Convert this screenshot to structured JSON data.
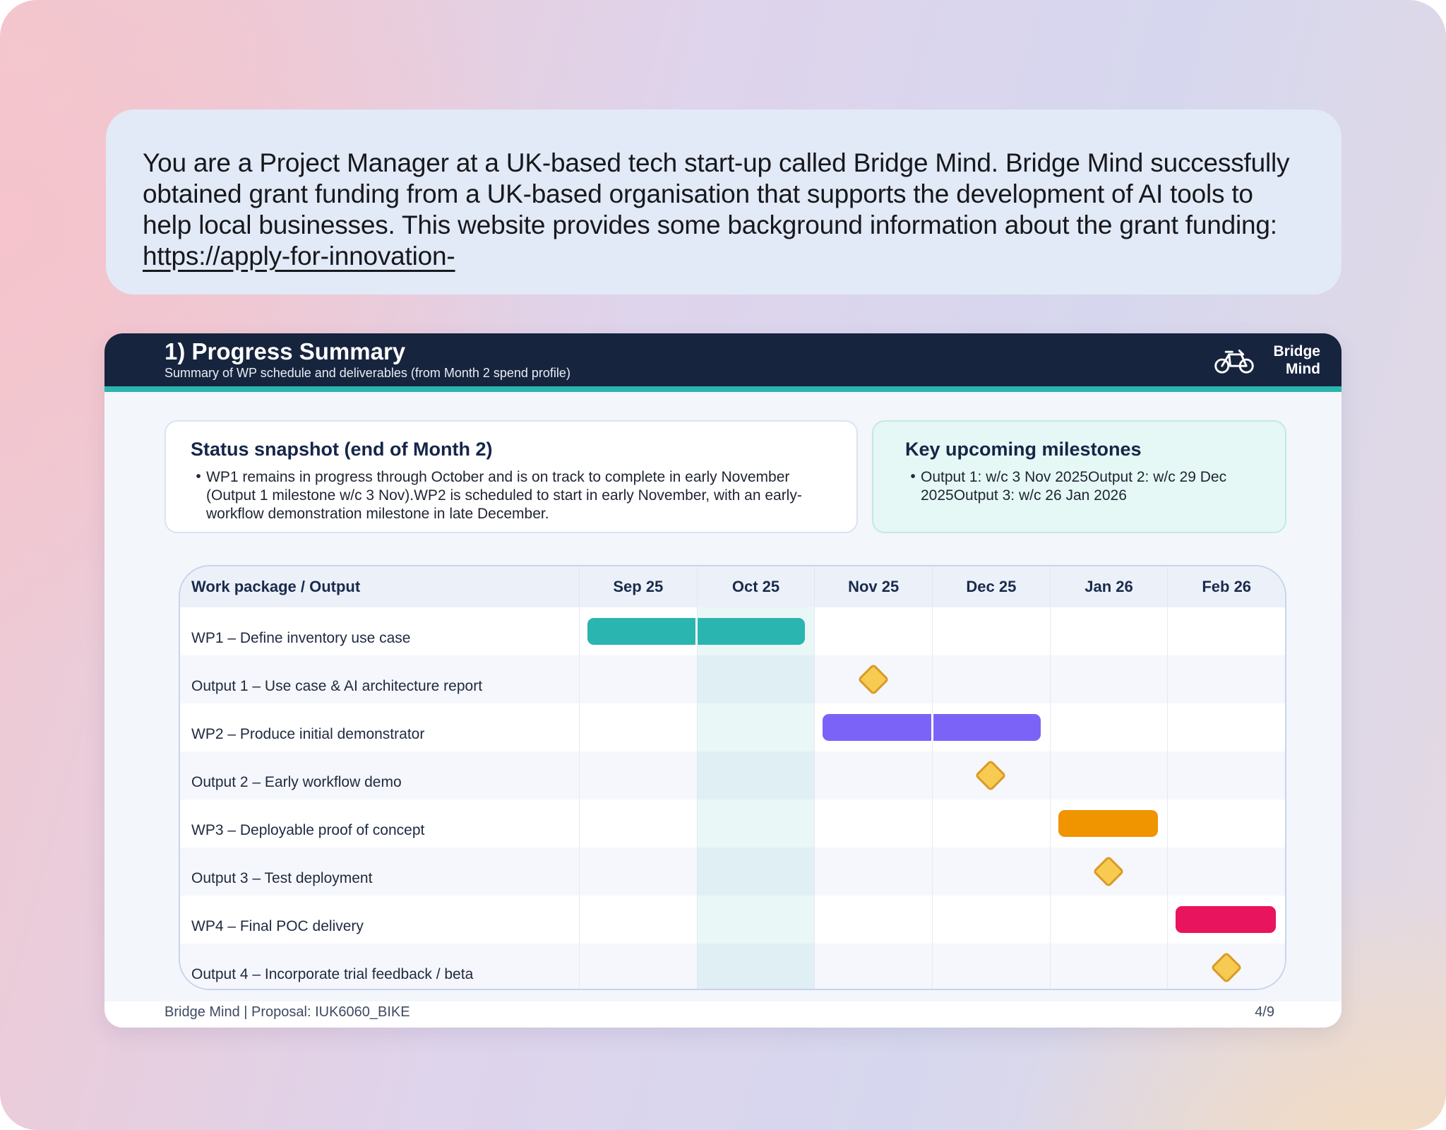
{
  "instruction_card": {
    "text_before_link": "You are a Project Manager at a UK-based tech start-up called Bridge Mind. Bridge Mind successfully obtained grant funding from a UK-based organisation that supports the development of AI tools to help local businesses. This website provides some background information about the grant funding:",
    "link_text": " https://apply-for-innovation-"
  },
  "slide": {
    "header": {
      "title": "1) Progress Summary",
      "subtitle": "Summary of WP schedule and deliverables (from Month 2 spend profile)",
      "brand_line1": "Bridge",
      "brand_line2": "Mind",
      "logo_icon": "bicycle-icon"
    },
    "status_box": {
      "title": "Status snapshot (end of Month 2)",
      "bullet_marker": "•",
      "bullets": [
        "WP1 remains in progress through October and is on track to complete in early November (Output 1 milestone w/c 3 Nov).WP2 is scheduled to start in early November, with an early-workflow demonstration milestone in late December."
      ]
    },
    "milestones_box": {
      "title": "Key upcoming milestones",
      "bullet_marker": "•",
      "bullets": [
        "Output 1: w/c 3 Nov 2025Output 2: w/c 29 Dec 2025Output 3: w/c 26 Jan 2026"
      ]
    },
    "footer": {
      "left": "Bridge Mind | Proposal: IUK6060_BIKE",
      "page": "4/9"
    }
  },
  "chart_data": {
    "type": "gantt",
    "table_header": "Work package / Output",
    "months": [
      "Sep 25",
      "Oct 25",
      "Nov 25",
      "Dec 25",
      "Jan 26",
      "Feb 26"
    ],
    "current_month_highlight": "Oct 25",
    "rows": [
      {
        "label": "WP1 – Define inventory use case",
        "kind": "bar",
        "start_month": "Sep 25",
        "span_months": 2,
        "color": "#2BB5B1"
      },
      {
        "label": "Output 1 – Use case & AI architecture report",
        "kind": "milestone",
        "month": "Nov 25"
      },
      {
        "label": "WP2 – Produce initial demonstrator",
        "kind": "bar",
        "start_month": "Nov 25",
        "span_months": 2,
        "color": "#7C63F8"
      },
      {
        "label": "Output 2 – Early workflow demo",
        "kind": "milestone",
        "month": "Dec 25"
      },
      {
        "label": "WP3 – Deployable proof of concept",
        "kind": "bar",
        "start_month": "Jan 26",
        "span_months": 1,
        "color": "#F09400"
      },
      {
        "label": "Output 3 – Test deployment",
        "kind": "milestone",
        "month": "Jan 26"
      },
      {
        "label": "WP4 – Final POC delivery",
        "kind": "bar",
        "start_month": "Feb 26",
        "span_months": 1,
        "color": "#E9145E"
      },
      {
        "label": "Output 4 – Incorporate trial feedback / beta",
        "kind": "milestone",
        "month": "Feb 26"
      }
    ],
    "milestone_style": {
      "fill": "#F7CB51",
      "border": "#DB9A25"
    },
    "colors": {
      "header_navy": "#17243E",
      "accent_teal": "#2BB5AE",
      "bar_teal": "#2BB5B1",
      "bar_purple": "#7C63F8",
      "bar_orange": "#F09400",
      "bar_pink": "#E9145E",
      "row_stripe": "#F5F7FC",
      "month_highlight": "rgba(43,181,174,0.10)"
    }
  }
}
